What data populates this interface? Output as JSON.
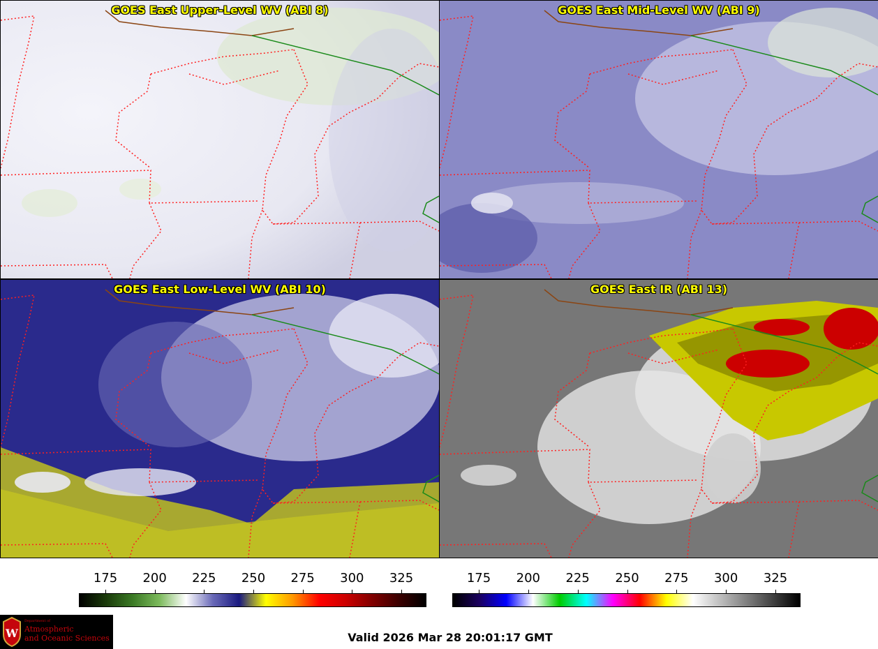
{
  "panels": [
    {
      "title": "GOES East Upper-Level WV (ABI 8)",
      "palette": "wv_upper"
    },
    {
      "title": "GOES East Mid-Level WV (ABI 9)",
      "palette": "wv_mid"
    },
    {
      "title": "GOES East Low-Level WV (ABI 10)",
      "palette": "wv_low"
    },
    {
      "title": "GOES East IR (ABI 13)",
      "palette": "ir"
    }
  ],
  "colorbars": [
    {
      "name": "water-vapor-colorbar",
      "ticks": [
        "175",
        "200",
        "225",
        "250",
        "275",
        "300",
        "325"
      ],
      "stops": [
        "#000000",
        "#1a3a0a",
        "#3b7a25",
        "#7cba5c",
        "#ffffff",
        "#6a6ab8",
        "#1a1a80",
        "#ffff00",
        "#ff9900",
        "#ff0000",
        "#cc0000",
        "#800000",
        "#3a0000",
        "#000000"
      ]
    },
    {
      "name": "infrared-colorbar",
      "ticks": [
        "175",
        "200",
        "225",
        "250",
        "275",
        "300",
        "325"
      ],
      "stops": [
        "#000000",
        "#1a0060",
        "#0000ff",
        "#ffffff",
        "#00cc00",
        "#00ffff",
        "#ff00ff",
        "#ff0000",
        "#ffff00",
        "#ffffff",
        "#bfbfbf",
        "#808080",
        "#404040",
        "#000000"
      ]
    }
  ],
  "logo": {
    "small": "Department of",
    "line1": "Atmospheric",
    "line2": "and Oceanic Sciences"
  },
  "valid_text": "Valid 2026 Mar 28 20:01:17 GMT",
  "colors": {
    "title_text": "#ffff00",
    "state_borders": "#ff2020",
    "international_border": "#1a8a1a",
    "coast_border": "#8b4513"
  }
}
